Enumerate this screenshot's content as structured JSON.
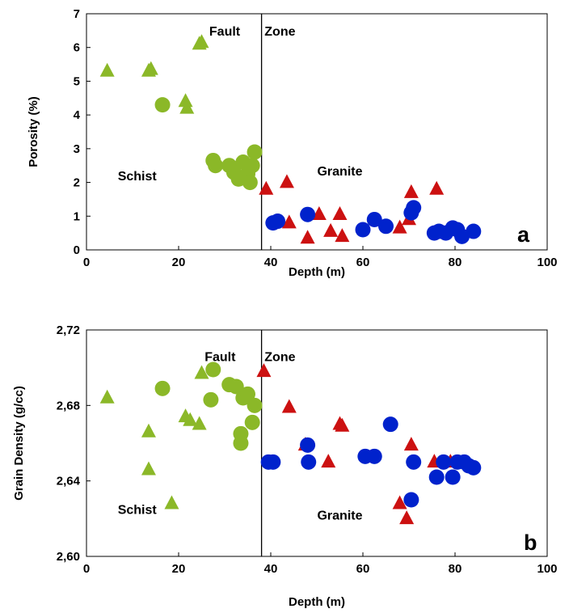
{
  "chart_data": [
    {
      "type": "scatter",
      "panel_label": "a",
      "xlabel": "Depth (m)",
      "ylabel": "Porosity (%)",
      "xlim": [
        0,
        100
      ],
      "ylim": [
        0,
        7
      ],
      "xticks": [
        0,
        20,
        40,
        60,
        80,
        100
      ],
      "yticks": [
        0,
        1,
        2,
        3,
        4,
        5,
        6,
        7
      ],
      "xtick_labels": [
        "0",
        "20",
        "40",
        "60",
        "80",
        "100"
      ],
      "ytick_labels": [
        "0",
        "1",
        "2",
        "3",
        "4",
        "5",
        "6",
        "7"
      ],
      "grid": false,
      "divider_x": 38,
      "annotations": [
        {
          "text": "Fault",
          "x": 30,
          "y": 6.5
        },
        {
          "text": "Zone",
          "x": 42,
          "y": 6.5
        },
        {
          "text": "Schist",
          "x": 11,
          "y": 2.2
        },
        {
          "text": "Granite",
          "x": 55,
          "y": 2.35
        }
      ],
      "series": [
        {
          "marker": "triangle",
          "color": "#8bb828",
          "points": [
            [
              4.5,
              5.3
            ],
            [
              13.5,
              5.3
            ],
            [
              14,
              5.35
            ],
            [
              21.5,
              4.4
            ],
            [
              21.8,
              4.2
            ],
            [
              24.5,
              6.1
            ],
            [
              25,
              6.15
            ]
          ]
        },
        {
          "marker": "circle",
          "color": "#8bb828",
          "points": [
            [
              16.5,
              4.3
            ],
            [
              27.5,
              2.65
            ],
            [
              28,
              2.5
            ],
            [
              31,
              2.5
            ],
            [
              32,
              2.3
            ],
            [
              33,
              2.1
            ],
            [
              34,
              2.6
            ],
            [
              35,
              2.25
            ],
            [
              35.5,
              2.0
            ],
            [
              36,
              2.5
            ],
            [
              36.5,
              2.9
            ]
          ]
        },
        {
          "marker": "triangle",
          "color": "#cc1111",
          "points": [
            [
              39,
              1.8
            ],
            [
              43.5,
              2.0
            ],
            [
              44,
              0.8
            ],
            [
              48,
              0.35
            ],
            [
              50.5,
              1.05
            ],
            [
              53,
              0.55
            ],
            [
              55,
              1.05
            ],
            [
              55.5,
              0.4
            ],
            [
              68,
              0.65
            ],
            [
              70,
              0.9
            ],
            [
              70.5,
              1.7
            ],
            [
              76,
              1.8
            ],
            [
              79,
              0.6
            ]
          ]
        },
        {
          "marker": "circle",
          "color": "#0022cc",
          "points": [
            [
              40.5,
              0.8
            ],
            [
              41.5,
              0.85
            ],
            [
              48,
              1.05
            ],
            [
              60,
              0.6
            ],
            [
              62.5,
              0.9
            ],
            [
              65,
              0.7
            ],
            [
              70.5,
              1.1
            ],
            [
              71,
              1.25
            ],
            [
              75.5,
              0.5
            ],
            [
              76.5,
              0.55
            ],
            [
              78,
              0.5
            ],
            [
              79.5,
              0.65
            ],
            [
              80.5,
              0.6
            ],
            [
              81.5,
              0.4
            ],
            [
              84,
              0.55
            ]
          ]
        }
      ]
    },
    {
      "type": "scatter",
      "panel_label": "b",
      "xlabel": "Depth (m)",
      "ylabel": "Grain Density (g/cc)",
      "xlim": [
        0,
        100
      ],
      "ylim": [
        2.6,
        2.72
      ],
      "xticks": [
        0,
        20,
        40,
        60,
        80,
        100
      ],
      "yticks": [
        2.6,
        2.64,
        2.68,
        2.72
      ],
      "xtick_labels": [
        "0",
        "20",
        "40",
        "60",
        "80",
        "100"
      ],
      "ytick_labels": [
        "2,60",
        "2,64",
        "2,68",
        "2,72"
      ],
      "grid": false,
      "divider_x": 38,
      "annotations": [
        {
          "text": "Fault",
          "x": 29,
          "y": 2.706
        },
        {
          "text": "Zone",
          "x": 42,
          "y": 2.706
        },
        {
          "text": "Schist",
          "x": 11,
          "y": 2.625
        },
        {
          "text": "Granite",
          "x": 55,
          "y": 2.622
        }
      ],
      "series": [
        {
          "marker": "triangle",
          "color": "#8bb828",
          "points": [
            [
              4.5,
              2.684
            ],
            [
              13.5,
              2.666
            ],
            [
              13.5,
              2.646
            ],
            [
              18.5,
              2.628
            ],
            [
              21.5,
              2.674
            ],
            [
              22.5,
              2.672
            ],
            [
              24.5,
              2.67
            ],
            [
              25,
              2.697
            ]
          ]
        },
        {
          "marker": "circle",
          "color": "#8bb828",
          "points": [
            [
              16.5,
              2.689
            ],
            [
              27,
              2.683
            ],
            [
              27.5,
              2.699
            ],
            [
              31,
              2.691
            ],
            [
              32.5,
              2.69
            ],
            [
              33.5,
              2.66
            ],
            [
              33.5,
              2.665
            ],
            [
              34,
              2.684
            ],
            [
              35,
              2.686
            ],
            [
              36,
              2.671
            ],
            [
              36.5,
              2.68
            ]
          ]
        },
        {
          "marker": "triangle",
          "color": "#cc1111",
          "points": [
            [
              38.5,
              2.698
            ],
            [
              44,
              2.679
            ],
            [
              47.5,
              2.659
            ],
            [
              52.5,
              2.65
            ],
            [
              55,
              2.67
            ],
            [
              55.5,
              2.669
            ],
            [
              68,
              2.628
            ],
            [
              69.5,
              2.62
            ],
            [
              70.5,
              2.659
            ],
            [
              75.5,
              2.65
            ],
            [
              79,
              2.65
            ]
          ]
        },
        {
          "marker": "circle",
          "color": "#0022cc",
          "points": [
            [
              39.5,
              2.65
            ],
            [
              40.5,
              2.65
            ],
            [
              48,
              2.659
            ],
            [
              48.2,
              2.65
            ],
            [
              60.5,
              2.653
            ],
            [
              62.5,
              2.653
            ],
            [
              66,
              2.67
            ],
            [
              70.5,
              2.63
            ],
            [
              71,
              2.65
            ],
            [
              76,
              2.642
            ],
            [
              77.5,
              2.65
            ],
            [
              79.5,
              2.642
            ],
            [
              80.5,
              2.65
            ],
            [
              82,
              2.65
            ],
            [
              83,
              2.648
            ],
            [
              84,
              2.647
            ]
          ]
        }
      ]
    }
  ]
}
